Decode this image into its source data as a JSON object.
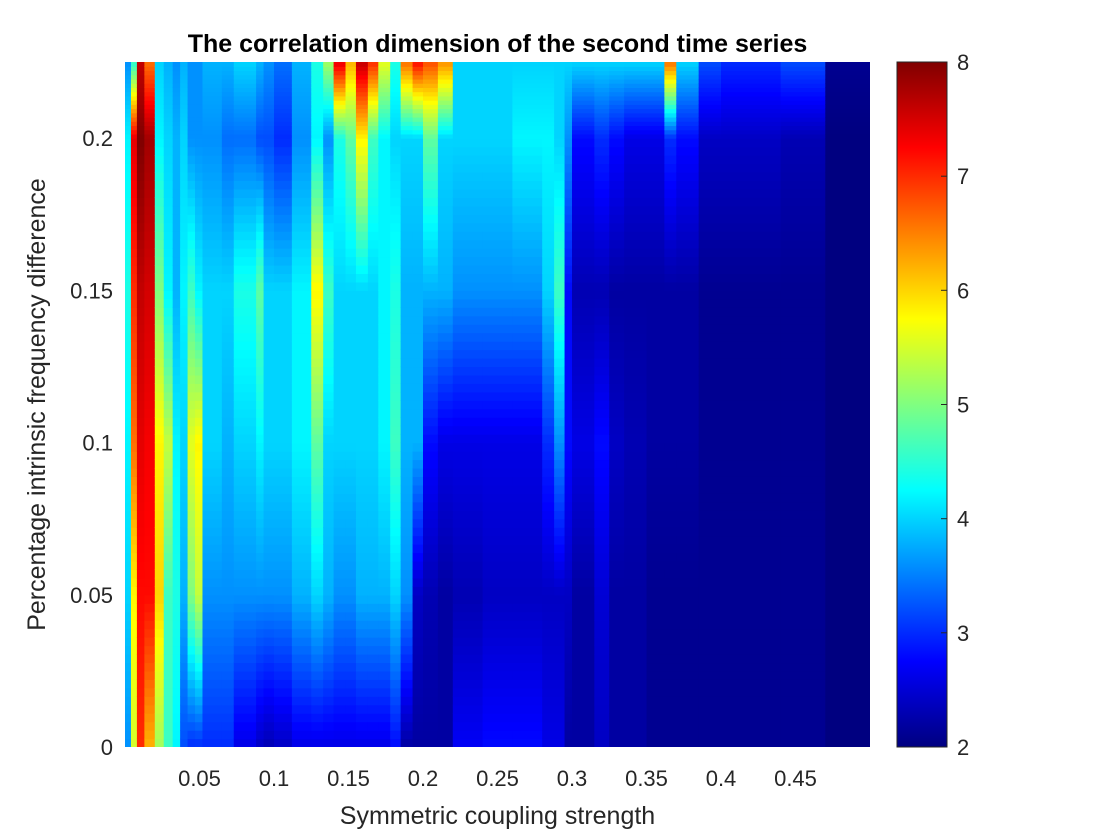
{
  "chart_data": {
    "type": "heatmap",
    "title": "The correlation dimension of the second time series",
    "xlabel": "Symmetric coupling strength",
    "ylabel": "Percentage intrinsic frequency difference",
    "xlim": [
      0.0,
      0.5
    ],
    "ylim": [
      0.0,
      0.225
    ],
    "xticks": [
      0.05,
      0.1,
      0.15,
      0.2,
      0.25,
      0.3,
      0.35,
      0.4,
      0.45
    ],
    "xtick_labels": [
      "0.05",
      "0.1",
      "0.15",
      "0.2",
      "0.25",
      "0.3",
      "0.35",
      "0.4",
      "0.45"
    ],
    "yticks": [
      0,
      0.05,
      0.1,
      0.15,
      0.2
    ],
    "ytick_labels": [
      "0",
      "0.05",
      "0.1",
      "0.15",
      "0.2"
    ],
    "colormap": "jet",
    "clim": [
      2,
      8
    ],
    "colorbar_ticks": [
      2,
      3,
      4,
      5,
      6,
      7,
      8
    ],
    "colorbar_tick_labels": [
      "2",
      "3",
      "4",
      "5",
      "6",
      "7",
      "8"
    ],
    "y_levels": [
      0,
      0.05,
      0.1,
      0.15,
      0.2,
      0.225
    ],
    "columns": [
      {
        "x0": 0.0,
        "x1": 0.004,
        "values": [
          3.6,
          4.0,
          4.2,
          4.4,
          4.2,
          3.6
        ]
      },
      {
        "x0": 0.004,
        "x1": 0.008,
        "values": [
          5.5,
          5.8,
          6.6,
          7.0,
          7.4,
          4.5
        ]
      },
      {
        "x0": 0.008,
        "x1": 0.013,
        "values": [
          7.0,
          7.2,
          7.4,
          7.6,
          8.0,
          7.6
        ]
      },
      {
        "x0": 0.013,
        "x1": 0.02,
        "values": [
          6.2,
          7.2,
          7.3,
          7.5,
          7.8,
          6.6
        ]
      },
      {
        "x0": 0.02,
        "x1": 0.026,
        "values": [
          5.2,
          6.0,
          5.8,
          5.0,
          4.2,
          4.0
        ]
      },
      {
        "x0": 0.026,
        "x1": 0.032,
        "values": [
          4.6,
          4.6,
          5.4,
          4.2,
          4.0,
          3.8
        ]
      },
      {
        "x0": 0.032,
        "x1": 0.037,
        "values": [
          4.2,
          4.4,
          4.2,
          3.8,
          3.8,
          3.6
        ]
      },
      {
        "x0": 0.037,
        "x1": 0.042,
        "values": [
          3.2,
          3.8,
          4.0,
          4.2,
          4.0,
          3.8
        ]
      },
      {
        "x0": 0.042,
        "x1": 0.047,
        "values": [
          3.0,
          5.0,
          5.6,
          4.6,
          3.6,
          3.6
        ]
      },
      {
        "x0": 0.047,
        "x1": 0.052,
        "values": [
          3.0,
          5.4,
          5.8,
          4.2,
          3.6,
          3.6
        ]
      },
      {
        "x0": 0.052,
        "x1": 0.065,
        "values": [
          3.0,
          3.6,
          4.0,
          4.0,
          3.6,
          3.8
        ]
      },
      {
        "x0": 0.065,
        "x1": 0.073,
        "values": [
          3.0,
          3.6,
          3.8,
          4.0,
          3.4,
          3.8
        ]
      },
      {
        "x0": 0.073,
        "x1": 0.088,
        "values": [
          2.6,
          3.6,
          4.0,
          4.4,
          3.4,
          4.0
        ]
      },
      {
        "x0": 0.088,
        "x1": 0.093,
        "values": [
          2.4,
          3.6,
          4.2,
          4.8,
          3.2,
          3.8
        ]
      },
      {
        "x0": 0.093,
        "x1": 0.1,
        "values": [
          2.3,
          3.6,
          4.0,
          4.0,
          3.2,
          3.6
        ]
      },
      {
        "x0": 0.1,
        "x1": 0.112,
        "values": [
          2.4,
          3.6,
          4.0,
          4.0,
          3.0,
          3.4
        ]
      },
      {
        "x0": 0.112,
        "x1": 0.125,
        "values": [
          2.6,
          3.8,
          4.2,
          4.2,
          3.6,
          3.8
        ]
      },
      {
        "x0": 0.125,
        "x1": 0.133,
        "values": [
          2.6,
          4.0,
          4.8,
          5.8,
          4.2,
          4.4
        ]
      },
      {
        "x0": 0.133,
        "x1": 0.14,
        "values": [
          2.6,
          3.8,
          4.0,
          4.6,
          3.6,
          5.2
        ]
      },
      {
        "x0": 0.14,
        "x1": 0.148,
        "values": [
          2.6,
          3.6,
          4.0,
          4.0,
          4.4,
          7.4
        ]
      },
      {
        "x0": 0.148,
        "x1": 0.155,
        "values": [
          2.6,
          3.6,
          4.0,
          4.0,
          4.8,
          6.2
        ]
      },
      {
        "x0": 0.155,
        "x1": 0.163,
        "values": [
          2.6,
          3.8,
          4.0,
          4.0,
          5.8,
          7.6
        ]
      },
      {
        "x0": 0.163,
        "x1": 0.17,
        "values": [
          2.6,
          3.8,
          4.0,
          4.0,
          4.6,
          7.0
        ]
      },
      {
        "x0": 0.17,
        "x1": 0.178,
        "values": [
          2.6,
          3.8,
          4.2,
          4.2,
          4.2,
          5.6
        ]
      },
      {
        "x0": 0.178,
        "x1": 0.185,
        "values": [
          2.8,
          4.0,
          4.6,
          4.4,
          4.0,
          4.4
        ]
      },
      {
        "x0": 0.185,
        "x1": 0.193,
        "values": [
          2.2,
          3.6,
          3.8,
          3.8,
          4.0,
          6.6
        ]
      },
      {
        "x0": 0.193,
        "x1": 0.2,
        "values": [
          2.2,
          2.4,
          3.8,
          3.8,
          4.0,
          7.2
        ]
      },
      {
        "x0": 0.2,
        "x1": 0.21,
        "values": [
          2.2,
          2.3,
          2.8,
          3.8,
          4.8,
          6.8
        ]
      },
      {
        "x0": 0.21,
        "x1": 0.22,
        "values": [
          2.2,
          2.2,
          2.6,
          3.8,
          4.0,
          6.4
        ]
      },
      {
        "x0": 0.22,
        "x1": 0.24,
        "values": [
          2.7,
          2.3,
          2.6,
          3.6,
          4.0,
          4.0
        ]
      },
      {
        "x0": 0.24,
        "x1": 0.26,
        "values": [
          2.8,
          2.4,
          2.6,
          3.6,
          4.0,
          4.0
        ]
      },
      {
        "x0": 0.26,
        "x1": 0.28,
        "values": [
          2.8,
          2.4,
          2.6,
          3.6,
          4.2,
          4.0
        ]
      },
      {
        "x0": 0.28,
        "x1": 0.288,
        "values": [
          2.6,
          2.4,
          3.0,
          4.0,
          4.2,
          4.0
        ]
      },
      {
        "x0": 0.288,
        "x1": 0.295,
        "values": [
          2.6,
          2.4,
          3.6,
          4.6,
          4.0,
          4.0
        ]
      },
      {
        "x0": 0.295,
        "x1": 0.3,
        "values": [
          2.2,
          2.4,
          2.8,
          2.8,
          3.6,
          4.0
        ]
      },
      {
        "x0": 0.3,
        "x1": 0.315,
        "values": [
          2.2,
          2.2,
          2.6,
          2.3,
          2.8,
          4.0
        ]
      },
      {
        "x0": 0.315,
        "x1": 0.325,
        "values": [
          2.4,
          2.5,
          2.8,
          2.3,
          3.0,
          4.0
        ]
      },
      {
        "x0": 0.325,
        "x1": 0.335,
        "values": [
          2.2,
          2.2,
          2.4,
          2.2,
          2.8,
          4.0
        ]
      },
      {
        "x0": 0.335,
        "x1": 0.35,
        "values": [
          2.2,
          2.2,
          2.3,
          2.2,
          2.6,
          4.0
        ]
      },
      {
        "x0": 0.35,
        "x1": 0.362,
        "values": [
          2.1,
          2.1,
          2.2,
          2.2,
          2.6,
          4.0
        ]
      },
      {
        "x0": 0.362,
        "x1": 0.37,
        "values": [
          2.1,
          2.1,
          2.2,
          2.2,
          3.0,
          6.6
        ]
      },
      {
        "x0": 0.37,
        "x1": 0.385,
        "values": [
          2.1,
          2.1,
          2.2,
          2.2,
          2.8,
          4.0
        ]
      },
      {
        "x0": 0.385,
        "x1": 0.4,
        "values": [
          2.1,
          2.1,
          2.1,
          2.1,
          2.4,
          3.2
        ]
      },
      {
        "x0": 0.4,
        "x1": 0.44,
        "values": [
          2.1,
          2.1,
          2.1,
          2.1,
          2.4,
          3.0
        ]
      },
      {
        "x0": 0.44,
        "x1": 0.47,
        "values": [
          2.1,
          2.1,
          2.1,
          2.1,
          2.3,
          3.2
        ]
      },
      {
        "x0": 0.47,
        "x1": 0.5,
        "values": [
          2.0,
          2.0,
          2.0,
          2.0,
          2.0,
          2.1
        ]
      }
    ]
  }
}
